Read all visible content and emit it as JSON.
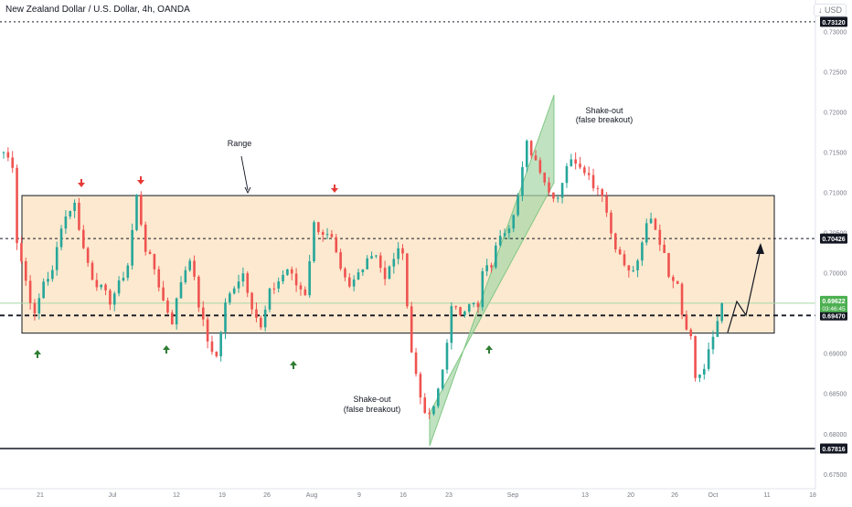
{
  "header": {
    "symbol_title": "New Zealand Dollar / U.S. Dollar, 4h, OANDA",
    "currency_label": "↓ USD"
  },
  "colors": {
    "bull": "#26a69a",
    "bear": "#ef5350",
    "range_fill": "#fde9cf",
    "channel_fill": "#a5d6a7",
    "arrow_up": "#2e7d32",
    "arrow_down": "#e53935",
    "price_tag_bg": "#131722",
    "current_tag_bg": "#4caf50"
  },
  "chart_data": {
    "type": "candlestick",
    "symbol": "NZDUSD",
    "timeframe": "4h",
    "price_axis": {
      "ticks": [
        "0.73000",
        "0.72500",
        "0.72000",
        "0.71500",
        "0.71000",
        "0.70500",
        "0.70000",
        "0.69500",
        "0.69000",
        "0.68500",
        "0.68000",
        "0.67500"
      ],
      "ylim": [
        0.6735,
        0.733
      ]
    },
    "time_axis": {
      "labels": [
        "21",
        "Jul",
        "12",
        "19",
        "26",
        "Aug",
        "9",
        "16",
        "23",
        "Sep",
        "13",
        "20",
        "26",
        "Oct",
        "11",
        "18"
      ]
    },
    "price_levels": [
      {
        "label": "0.73120",
        "value": 0.7312,
        "style": "dotted"
      },
      {
        "label": "0.70426",
        "value": 0.70426,
        "style": "dashed"
      },
      {
        "label": "0.69470",
        "value": 0.6947,
        "style": "dashed-bold"
      },
      {
        "label": "0.67816",
        "value": 0.67816,
        "style": "solid"
      }
    ],
    "current_price": {
      "value": "0.69622",
      "countdown": "03:46:45"
    },
    "range_box": {
      "top": 0.7096,
      "bottom": 0.6925
    },
    "annotations": [
      "Range",
      "Shake-out",
      "(false breakout)",
      "Shake-out",
      "(false breakout)"
    ],
    "ohlc_path": [
      {
        "t": 0,
        "c": 0.715
      },
      {
        "t": 2,
        "c": 0.7135
      },
      {
        "t": 3,
        "c": 0.704
      },
      {
        "t": 5,
        "c": 0.699
      },
      {
        "t": 7,
        "c": 0.6945
      },
      {
        "t": 9,
        "c": 0.699
      },
      {
        "t": 11,
        "c": 0.7
      },
      {
        "t": 13,
        "c": 0.706
      },
      {
        "t": 15,
        "c": 0.708
      },
      {
        "t": 16,
        "c": 0.7085
      },
      {
        "t": 18,
        "c": 0.703
      },
      {
        "t": 20,
        "c": 0.6995
      },
      {
        "t": 22,
        "c": 0.698
      },
      {
        "t": 24,
        "c": 0.6965
      },
      {
        "t": 26,
        "c": 0.6985
      },
      {
        "t": 28,
        "c": 0.701
      },
      {
        "t": 30,
        "c": 0.7095
      },
      {
        "t": 32,
        "c": 0.703
      },
      {
        "t": 34,
        "c": 0.7005
      },
      {
        "t": 36,
        "c": 0.6965
      },
      {
        "t": 38,
        "c": 0.694
      },
      {
        "t": 40,
        "c": 0.699
      },
      {
        "t": 42,
        "c": 0.702
      },
      {
        "t": 44,
        "c": 0.696
      },
      {
        "t": 46,
        "c": 0.6915
      },
      {
        "t": 48,
        "c": 0.6895
      },
      {
        "t": 50,
        "c": 0.696
      },
      {
        "t": 52,
        "c": 0.6985
      },
      {
        "t": 54,
        "c": 0.7
      },
      {
        "t": 56,
        "c": 0.696
      },
      {
        "t": 58,
        "c": 0.693
      },
      {
        "t": 60,
        "c": 0.6975
      },
      {
        "t": 62,
        "c": 0.699
      },
      {
        "t": 64,
        "c": 0.7005
      },
      {
        "t": 66,
        "c": 0.6985
      },
      {
        "t": 68,
        "c": 0.6975
      },
      {
        "t": 70,
        "c": 0.706
      },
      {
        "t": 72,
        "c": 0.705
      },
      {
        "t": 74,
        "c": 0.704
      },
      {
        "t": 76,
        "c": 0.7
      },
      {
        "t": 78,
        "c": 0.698
      },
      {
        "t": 80,
        "c": 0.7
      },
      {
        "t": 82,
        "c": 0.702
      },
      {
        "t": 84,
        "c": 0.7025
      },
      {
        "t": 86,
        "c": 0.699
      },
      {
        "t": 88,
        "c": 0.702
      },
      {
        "t": 90,
        "c": 0.703
      },
      {
        "t": 91,
        "c": 0.696
      },
      {
        "t": 92,
        "c": 0.69
      },
      {
        "t": 94,
        "c": 0.685
      },
      {
        "t": 95,
        "c": 0.682
      },
      {
        "t": 97,
        "c": 0.683
      },
      {
        "t": 99,
        "c": 0.688
      },
      {
        "t": 101,
        "c": 0.6955
      },
      {
        "t": 103,
        "c": 0.695
      },
      {
        "t": 105,
        "c": 0.6965
      },
      {
        "t": 107,
        "c": 0.6955
      },
      {
        "t": 108,
        "c": 0.7
      },
      {
        "t": 110,
        "c": 0.701
      },
      {
        "t": 112,
        "c": 0.705
      },
      {
        "t": 114,
        "c": 0.706
      },
      {
        "t": 116,
        "c": 0.7095
      },
      {
        "t": 118,
        "c": 0.716
      },
      {
        "t": 119,
        "c": 0.715
      },
      {
        "t": 121,
        "c": 0.713
      },
      {
        "t": 123,
        "c": 0.71
      },
      {
        "t": 125,
        "c": 0.7095
      },
      {
        "t": 127,
        "c": 0.7135
      },
      {
        "t": 129,
        "c": 0.714
      },
      {
        "t": 131,
        "c": 0.713
      },
      {
        "t": 133,
        "c": 0.711
      },
      {
        "t": 135,
        "c": 0.71
      },
      {
        "t": 137,
        "c": 0.705
      },
      {
        "t": 139,
        "c": 0.702
      },
      {
        "t": 141,
        "c": 0.7
      },
      {
        "t": 143,
        "c": 0.701
      },
      {
        "t": 145,
        "c": 0.706
      },
      {
        "t": 146,
        "c": 0.707
      },
      {
        "t": 148,
        "c": 0.704
      },
      {
        "t": 150,
        "c": 0.7
      },
      {
        "t": 152,
        "c": 0.699
      },
      {
        "t": 153,
        "c": 0.695
      },
      {
        "t": 155,
        "c": 0.692
      },
      {
        "t": 156,
        "c": 0.687
      },
      {
        "t": 158,
        "c": 0.688
      },
      {
        "t": 160,
        "c": 0.692
      },
      {
        "t": 162,
        "c": 0.6962
      }
    ]
  }
}
